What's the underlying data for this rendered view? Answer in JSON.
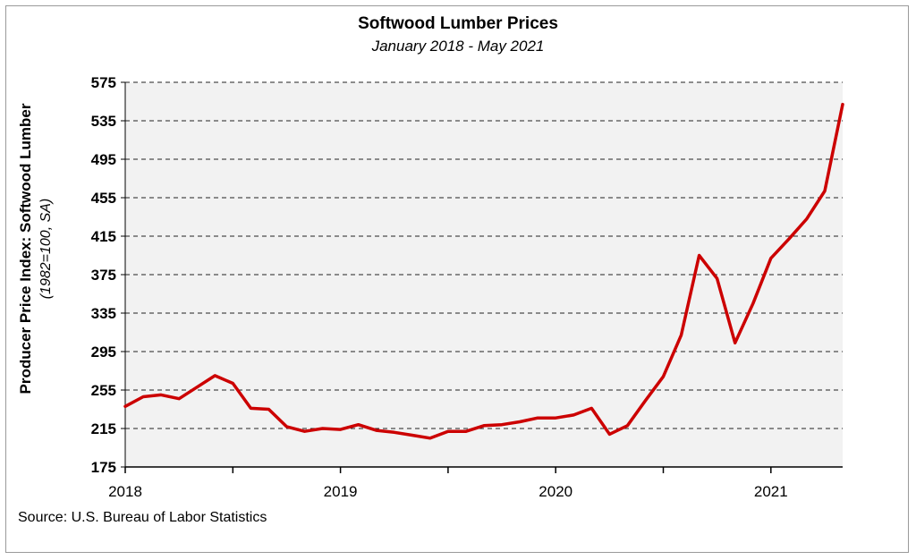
{
  "chart_data": {
    "type": "line",
    "title": "Softwood Lumber Prices",
    "subtitle": "January 2018 - May 2021",
    "ylabel": "Producer Price Index: Softwood Lumber",
    "ylabel_sub": "(1982=100, SA)",
    "xlabel": "",
    "ylim": [
      175,
      575
    ],
    "yticks": [
      "175",
      "215",
      "255",
      "295",
      "335",
      "375",
      "415",
      "455",
      "495",
      "535",
      "575"
    ],
    "xtick_labels": [
      "2018",
      "2019",
      "2020",
      "2021"
    ],
    "grid": "horizontal dashed",
    "line_color": "#cc0000",
    "series": [
      {
        "x": [
          "2018-01",
          "2018-02",
          "2018-03",
          "2018-04",
          "2018-05",
          "2018-06",
          "2018-07",
          "2018-08",
          "2018-09",
          "2018-10",
          "2018-11",
          "2018-12",
          "2019-01",
          "2019-02",
          "2019-03",
          "2019-04",
          "2019-05",
          "2019-06",
          "2019-07",
          "2019-08",
          "2019-09",
          "2019-10",
          "2019-11",
          "2019-12",
          "2020-01",
          "2020-02",
          "2020-03",
          "2020-04",
          "2020-05",
          "2020-06",
          "2020-07",
          "2020-08",
          "2020-09",
          "2020-10",
          "2020-11",
          "2020-12",
          "2021-01",
          "2021-02",
          "2021-03",
          "2021-04",
          "2021-05"
        ],
        "values": [
          238,
          248,
          250,
          246,
          258,
          270,
          262,
          236,
          235,
          217,
          212,
          215,
          214,
          219,
          213,
          211,
          208,
          205,
          212,
          212,
          218,
          219,
          222,
          226,
          226,
          229,
          236,
          209,
          218,
          244,
          269,
          312,
          395,
          371,
          304,
          345,
          392,
          412,
          433,
          462,
          552
        ]
      }
    ],
    "source": "Source: U.S. Bureau of Labor Statistics"
  }
}
